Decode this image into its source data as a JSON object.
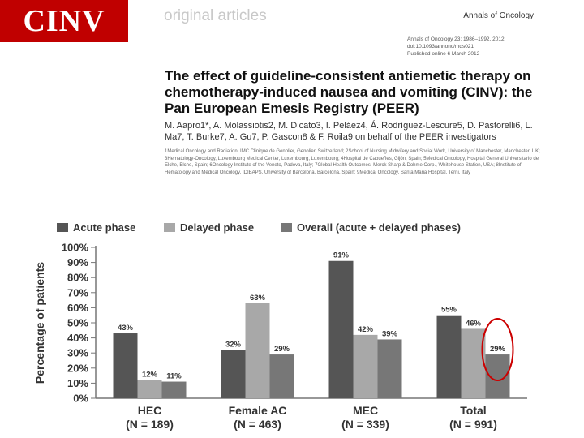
{
  "slide": {
    "tag": "CINV",
    "section": "original articles",
    "journal": "Annals of Oncology",
    "meta": [
      "Annals of Oncology 23: 1986–1992, 2012",
      "doi:10.1093/annonc/mds021",
      "Published online 6 March 2012"
    ],
    "title": "The effect of guideline-consistent antiemetic therapy on chemotherapy-induced nausea and vomiting (CINV): the Pan European Emesis Registry (PEER)",
    "authors": "M. Aapro1*, A. Molassiotis2, M. Dicato3, I. Peláez4, Á. Rodríguez-Lescure5, D. Pastorelli6, L. Ma7, T. Burke7, A. Gu7, P. Gascon8 & F. Roila9 on behalf of the PEER investigators",
    "affiliations": "1Medical Oncology and Radiation, IMC Clinique de Genolier, Genolier, Switzerland; 2School of Nursing Midwifery and Social Work, University of Manchester, Manchester, UK; 3Hematology-Oncology, Luxembourg Medical Center, Luxembourg, Luxembourg; 4Hospital de Cabueñes, Gijón, Spain; 5Medical Oncology, Hospital General Universitario de Elche, Elche, Spain; 6Oncology Institute of the Veneto, Padova, Italy; 7Global Health Outcomes, Merck Sharp & Dohme Corp., Whitehouse Station, USA; 8Institute of Hematology and Medical Oncology, IDIBAPS, University of Barcelona, Barcelona, Spain; 9Medical Oncology, Santa Maria Hospital, Terni, Italy"
  },
  "chart_data": {
    "type": "bar",
    "categories": [
      "HEC",
      "Female AC",
      "MEC",
      "Total"
    ],
    "category_sublabels": [
      "(N = 189)",
      "(N = 463)",
      "(N = 339)",
      "(N = 991)"
    ],
    "series": [
      {
        "name": "Acute phase",
        "color": "#555555",
        "values": [
          43,
          32,
          91,
          55
        ],
        "labels": [
          "43%",
          "32%",
          "91%",
          "55%"
        ]
      },
      {
        "name": "Delayed phase",
        "color": "#a8a8a8",
        "values": [
          12,
          63,
          42,
          46
        ],
        "labels": [
          "12%",
          "63%",
          "42%",
          "46%"
        ]
      },
      {
        "name": "Overall (acute + delayed phases)",
        "color": "#777777",
        "values": [
          11,
          29,
          39,
          29
        ],
        "labels": [
          "11%",
          "29%",
          "39%",
          "29%"
        ]
      }
    ],
    "ylabel": "Percentage of patients",
    "ylim": [
      0,
      100
    ],
    "yticks": [
      "0%",
      "10%",
      "20%",
      "30%",
      "40%",
      "50%",
      "60%",
      "70%",
      "80%",
      "90%",
      "100%"
    ],
    "highlight": {
      "category_index": 3,
      "series_index": 2,
      "color": "#cc0000"
    },
    "legend_position": "top",
    "grid": false
  }
}
